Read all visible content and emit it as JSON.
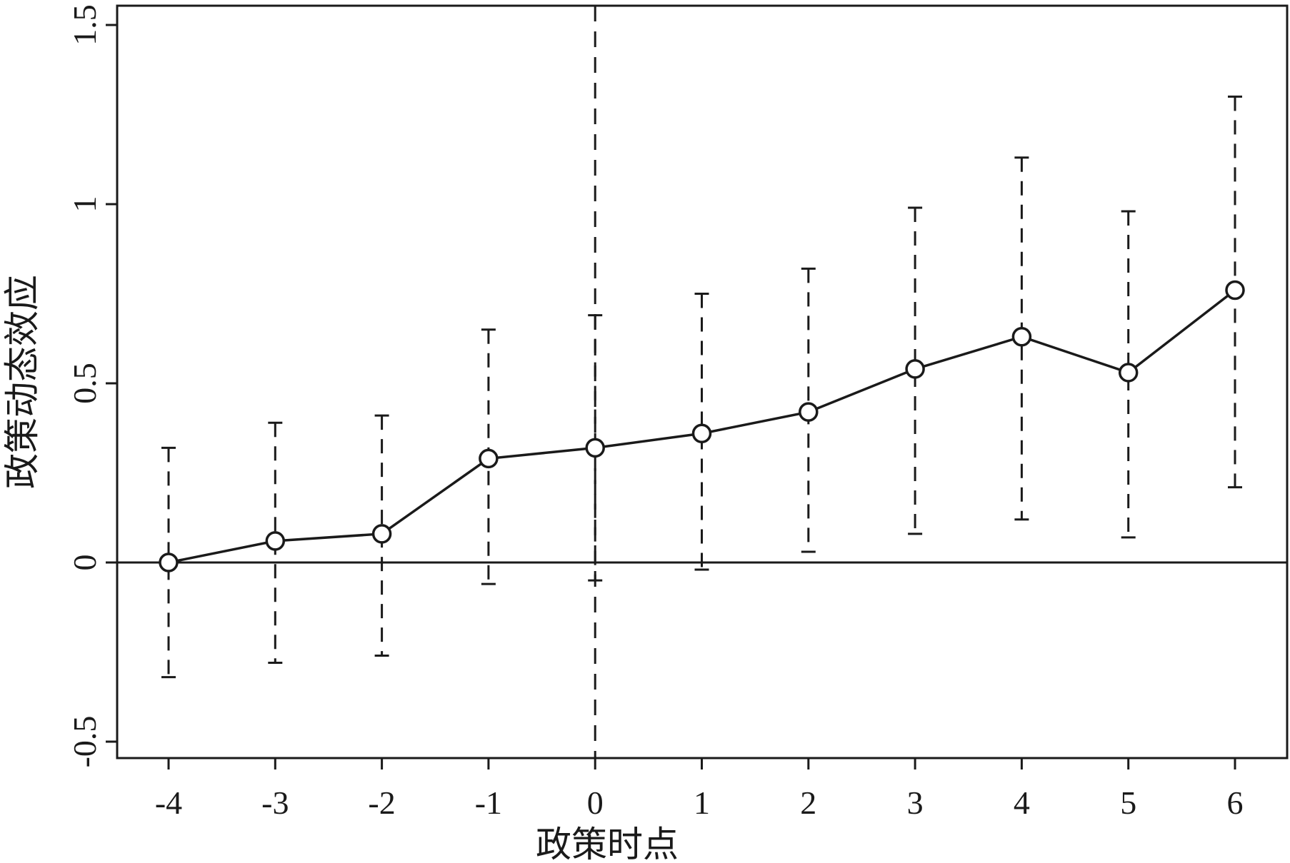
{
  "chart_data": {
    "type": "line",
    "xlabel": "政策时点",
    "ylabel": "政策动态效应",
    "x": [
      -4,
      -3,
      -2,
      -1,
      0,
      1,
      2,
      3,
      4,
      5,
      6
    ],
    "x_tick_labels": [
      "-4",
      "-3",
      "-2",
      "-1",
      "0",
      "1",
      "2",
      "3",
      "4",
      "5",
      "6"
    ],
    "y_ticks": [
      -0.5,
      0,
      0.5,
      1,
      1.5
    ],
    "y_tick_labels": [
      "-0.5",
      "0",
      "0.5",
      "1",
      "1.5"
    ],
    "xlim": [
      -4.5,
      6.5
    ],
    "ylim": [
      -0.55,
      1.56
    ],
    "series": [
      {
        "marker": "hollow-circle",
        "values": [
          0.0,
          0.06,
          0.08,
          0.29,
          0.32,
          0.36,
          0.42,
          0.54,
          0.63,
          0.53,
          0.76
        ],
        "ci_lower": [
          -0.32,
          -0.28,
          -0.26,
          -0.06,
          -0.05,
          -0.02,
          0.03,
          0.08,
          0.12,
          0.07,
          0.21
        ],
        "ci_upper": [
          0.32,
          0.39,
          0.41,
          0.65,
          0.69,
          0.75,
          0.82,
          0.99,
          1.13,
          0.98,
          1.3
        ]
      }
    ],
    "reference_lines": [
      {
        "orientation": "horizontal",
        "value": 0,
        "style": "solid"
      },
      {
        "orientation": "vertical",
        "value": 0,
        "style": "dashed"
      }
    ],
    "grid": false,
    "legend": "none",
    "colors": {
      "ink": "#1a1a1a",
      "background": "#ffffff"
    }
  }
}
